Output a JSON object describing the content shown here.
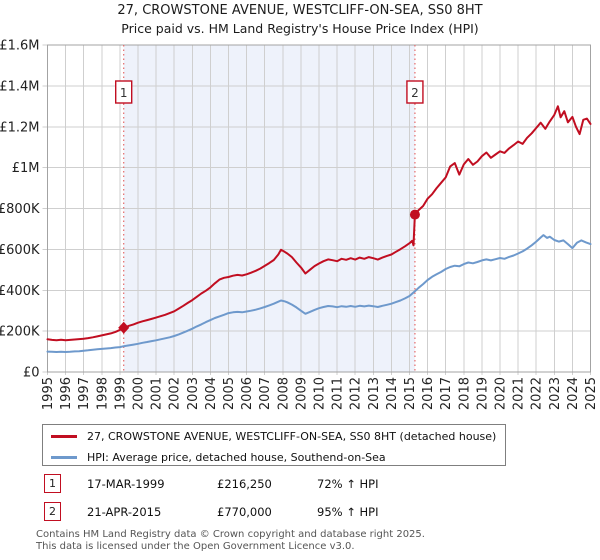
{
  "header": {
    "title": "27, CROWSTONE AVENUE, WESTCLIFF-ON-SEA, SS0 8HT",
    "subtitle": "Price paid vs. HM Land Registry's House Price Index (HPI)"
  },
  "chart_data": {
    "type": "line",
    "x_range": [
      1995,
      2025
    ],
    "y_range": [
      0,
      1600
    ],
    "y_unit": "£K",
    "grid": true,
    "x_ticks": [
      1995,
      1996,
      1997,
      1998,
      1999,
      2000,
      2001,
      2002,
      2003,
      2004,
      2005,
      2006,
      2007,
      2008,
      2009,
      2010,
      2011,
      2012,
      2013,
      2014,
      2015,
      2016,
      2017,
      2018,
      2019,
      2020,
      2021,
      2022,
      2023,
      2024,
      2025
    ],
    "y_ticks": [
      {
        "value": 0,
        "label": "£0"
      },
      {
        "value": 200,
        "label": "£200K"
      },
      {
        "value": 400,
        "label": "£400K"
      },
      {
        "value": 600,
        "label": "£600K"
      },
      {
        "value": 800,
        "label": "£800K"
      },
      {
        "value": 1000,
        "label": "£1M"
      },
      {
        "value": 1200,
        "label": "£1.2M"
      },
      {
        "value": 1400,
        "label": "£1.4M"
      },
      {
        "value": 1600,
        "label": "£1.6M"
      }
    ],
    "shaded_region": [
      1999.21,
      2015.3
    ],
    "colors": {
      "property": "#c10e21",
      "hpi": "#6e99cc",
      "dashed_marker": "#e46a6a",
      "shaded": "#eef2fb",
      "grid": "#cfcfcf",
      "border": "#a3a3a3"
    },
    "series": [
      {
        "name": "property",
        "color": "#c10e21",
        "points": [
          [
            1995.0,
            160
          ],
          [
            1995.25,
            157
          ],
          [
            1995.5,
            155
          ],
          [
            1995.75,
            158
          ],
          [
            1996.0,
            155
          ],
          [
            1996.25,
            157
          ],
          [
            1996.5,
            159
          ],
          [
            1996.75,
            161
          ],
          [
            1997.0,
            163
          ],
          [
            1997.25,
            166
          ],
          [
            1997.5,
            170
          ],
          [
            1997.75,
            174
          ],
          [
            1998.0,
            179
          ],
          [
            1998.25,
            184
          ],
          [
            1998.5,
            189
          ],
          [
            1998.75,
            196
          ],
          [
            1999.0,
            206
          ],
          [
            1999.21,
            216
          ],
          [
            1999.5,
            226
          ],
          [
            1999.75,
            233
          ],
          [
            2000.0,
            241
          ],
          [
            2000.25,
            248
          ],
          [
            2000.5,
            254
          ],
          [
            2000.75,
            260
          ],
          [
            2001.0,
            266
          ],
          [
            2001.25,
            273
          ],
          [
            2001.5,
            280
          ],
          [
            2001.75,
            288
          ],
          [
            2002.0,
            297
          ],
          [
            2002.25,
            310
          ],
          [
            2002.5,
            324
          ],
          [
            2002.75,
            338
          ],
          [
            2003.0,
            352
          ],
          [
            2003.25,
            368
          ],
          [
            2003.5,
            384
          ],
          [
            2003.75,
            398
          ],
          [
            2004.0,
            414
          ],
          [
            2004.25,
            434
          ],
          [
            2004.5,
            452
          ],
          [
            2004.75,
            461
          ],
          [
            2005.0,
            465
          ],
          [
            2005.25,
            471
          ],
          [
            2005.5,
            475
          ],
          [
            2005.75,
            472
          ],
          [
            2006.0,
            478
          ],
          [
            2006.25,
            486
          ],
          [
            2006.5,
            495
          ],
          [
            2006.75,
            506
          ],
          [
            2007.0,
            519
          ],
          [
            2007.25,
            533
          ],
          [
            2007.5,
            548
          ],
          [
            2007.75,
            575
          ],
          [
            2007.9,
            598
          ],
          [
            2008.1,
            588
          ],
          [
            2008.25,
            580
          ],
          [
            2008.5,
            562
          ],
          [
            2008.75,
            536
          ],
          [
            2009.0,
            512
          ],
          [
            2009.25,
            482
          ],
          [
            2009.5,
            500
          ],
          [
            2009.75,
            518
          ],
          [
            2010.0,
            531
          ],
          [
            2010.25,
            542
          ],
          [
            2010.5,
            551
          ],
          [
            2010.75,
            547
          ],
          [
            2011.0,
            542
          ],
          [
            2011.25,
            554
          ],
          [
            2011.5,
            549
          ],
          [
            2011.75,
            557
          ],
          [
            2012.0,
            550
          ],
          [
            2012.25,
            560
          ],
          [
            2012.5,
            554
          ],
          [
            2012.75,
            562
          ],
          [
            2013.0,
            557
          ],
          [
            2013.25,
            550
          ],
          [
            2013.5,
            560
          ],
          [
            2013.75,
            568
          ],
          [
            2014.0,
            575
          ],
          [
            2014.25,
            588
          ],
          [
            2014.5,
            601
          ],
          [
            2014.75,
            615
          ],
          [
            2015.0,
            630
          ],
          [
            2015.15,
            642
          ],
          [
            2015.22,
            620
          ],
          [
            2015.3,
            770
          ],
          [
            2015.5,
            792
          ],
          [
            2015.75,
            812
          ],
          [
            2016.0,
            848
          ],
          [
            2016.25,
            870
          ],
          [
            2016.5,
            900
          ],
          [
            2016.75,
            926
          ],
          [
            2017.0,
            952
          ],
          [
            2017.25,
            1006
          ],
          [
            2017.5,
            1022
          ],
          [
            2017.75,
            966
          ],
          [
            2018.0,
            1016
          ],
          [
            2018.25,
            1042
          ],
          [
            2018.5,
            1014
          ],
          [
            2018.75,
            1030
          ],
          [
            2019.0,
            1056
          ],
          [
            2019.25,
            1074
          ],
          [
            2019.5,
            1048
          ],
          [
            2019.75,
            1064
          ],
          [
            2020.0,
            1080
          ],
          [
            2020.25,
            1072
          ],
          [
            2020.5,
            1094
          ],
          [
            2020.75,
            1110
          ],
          [
            2021.0,
            1128
          ],
          [
            2021.25,
            1116
          ],
          [
            2021.5,
            1146
          ],
          [
            2021.75,
            1168
          ],
          [
            2022.0,
            1194
          ],
          [
            2022.25,
            1220
          ],
          [
            2022.5,
            1190
          ],
          [
            2022.75,
            1226
          ],
          [
            2023.0,
            1258
          ],
          [
            2023.2,
            1300
          ],
          [
            2023.35,
            1246
          ],
          [
            2023.55,
            1276
          ],
          [
            2023.75,
            1222
          ],
          [
            2024.0,
            1248
          ],
          [
            2024.2,
            1200
          ],
          [
            2024.4,
            1164
          ],
          [
            2024.6,
            1234
          ],
          [
            2024.8,
            1240
          ],
          [
            2025.0,
            1214
          ]
        ]
      },
      {
        "name": "hpi",
        "color": "#6e99cc",
        "points": [
          [
            1995.0,
            100
          ],
          [
            1995.25,
            99
          ],
          [
            1995.5,
            98
          ],
          [
            1995.75,
            99
          ],
          [
            1996.0,
            98
          ],
          [
            1996.25,
            99
          ],
          [
            1996.5,
            101
          ],
          [
            1996.75,
            102
          ],
          [
            1997.0,
            104
          ],
          [
            1997.25,
            106
          ],
          [
            1997.5,
            109
          ],
          [
            1997.75,
            111
          ],
          [
            1998.0,
            113
          ],
          [
            1998.25,
            115
          ],
          [
            1998.5,
            117
          ],
          [
            1998.75,
            120
          ],
          [
            1999.0,
            122
          ],
          [
            1999.21,
            126
          ],
          [
            1999.5,
            130
          ],
          [
            1999.75,
            134
          ],
          [
            2000.0,
            138
          ],
          [
            2000.25,
            143
          ],
          [
            2000.5,
            147
          ],
          [
            2000.75,
            151
          ],
          [
            2001.0,
            155
          ],
          [
            2001.25,
            160
          ],
          [
            2001.5,
            165
          ],
          [
            2001.75,
            170
          ],
          [
            2002.0,
            176
          ],
          [
            2002.25,
            184
          ],
          [
            2002.5,
            193
          ],
          [
            2002.75,
            202
          ],
          [
            2003.0,
            212
          ],
          [
            2003.25,
            223
          ],
          [
            2003.5,
            233
          ],
          [
            2003.75,
            244
          ],
          [
            2004.0,
            254
          ],
          [
            2004.25,
            264
          ],
          [
            2004.5,
            272
          ],
          [
            2004.75,
            280
          ],
          [
            2005.0,
            288
          ],
          [
            2005.25,
            292
          ],
          [
            2005.5,
            294
          ],
          [
            2005.75,
            292
          ],
          [
            2006.0,
            296
          ],
          [
            2006.25,
            300
          ],
          [
            2006.5,
            305
          ],
          [
            2006.75,
            311
          ],
          [
            2007.0,
            318
          ],
          [
            2007.25,
            326
          ],
          [
            2007.5,
            334
          ],
          [
            2007.75,
            344
          ],
          [
            2007.9,
            350
          ],
          [
            2008.1,
            346
          ],
          [
            2008.25,
            341
          ],
          [
            2008.5,
            330
          ],
          [
            2008.75,
            316
          ],
          [
            2009.0,
            300
          ],
          [
            2009.25,
            285
          ],
          [
            2009.5,
            294
          ],
          [
            2009.75,
            304
          ],
          [
            2010.0,
            312
          ],
          [
            2010.25,
            318
          ],
          [
            2010.5,
            323
          ],
          [
            2010.75,
            321
          ],
          [
            2011.0,
            317
          ],
          [
            2011.25,
            322
          ],
          [
            2011.5,
            319
          ],
          [
            2011.75,
            323
          ],
          [
            2012.0,
            319
          ],
          [
            2012.25,
            324
          ],
          [
            2012.5,
            321
          ],
          [
            2012.75,
            325
          ],
          [
            2013.0,
            322
          ],
          [
            2013.25,
            318
          ],
          [
            2013.5,
            324
          ],
          [
            2013.75,
            329
          ],
          [
            2014.0,
            334
          ],
          [
            2014.25,
            342
          ],
          [
            2014.5,
            350
          ],
          [
            2014.75,
            360
          ],
          [
            2015.0,
            372
          ],
          [
            2015.3,
            395
          ],
          [
            2015.5,
            412
          ],
          [
            2015.75,
            430
          ],
          [
            2016.0,
            450
          ],
          [
            2016.25,
            466
          ],
          [
            2016.5,
            478
          ],
          [
            2016.75,
            490
          ],
          [
            2017.0,
            504
          ],
          [
            2017.25,
            514
          ],
          [
            2017.5,
            520
          ],
          [
            2017.75,
            517
          ],
          [
            2018.0,
            528
          ],
          [
            2018.25,
            536
          ],
          [
            2018.5,
            532
          ],
          [
            2018.75,
            538
          ],
          [
            2019.0,
            546
          ],
          [
            2019.25,
            551
          ],
          [
            2019.5,
            546
          ],
          [
            2019.75,
            552
          ],
          [
            2020.0,
            558
          ],
          [
            2020.25,
            554
          ],
          [
            2020.5,
            563
          ],
          [
            2020.75,
            570
          ],
          [
            2021.0,
            580
          ],
          [
            2021.25,
            590
          ],
          [
            2021.5,
            604
          ],
          [
            2021.75,
            620
          ],
          [
            2022.0,
            638
          ],
          [
            2022.25,
            658
          ],
          [
            2022.4,
            670
          ],
          [
            2022.6,
            656
          ],
          [
            2022.75,
            662
          ],
          [
            2023.0,
            646
          ],
          [
            2023.25,
            638
          ],
          [
            2023.5,
            644
          ],
          [
            2023.75,
            626
          ],
          [
            2024.0,
            606
          ],
          [
            2024.25,
            632
          ],
          [
            2024.5,
            644
          ],
          [
            2024.75,
            634
          ],
          [
            2025.0,
            626
          ]
        ]
      }
    ],
    "sales": [
      {
        "label": "1",
        "x": 1999.21,
        "y": 216.25,
        "shape": "diamond"
      },
      {
        "label": "2",
        "x": 2015.3,
        "y": 770,
        "shape": "circle"
      }
    ]
  },
  "legend": {
    "items": [
      {
        "label": "27, CROWSTONE AVENUE, WESTCLIFF-ON-SEA, SS0 8HT (detached house)",
        "color": "#c10e21"
      },
      {
        "label": "HPI: Average price, detached house, Southend-on-Sea",
        "color": "#6e99cc"
      }
    ]
  },
  "annotations": [
    {
      "num": "1",
      "date": "17-MAR-1999",
      "price": "£216,250",
      "hpi": "72% ↑ HPI"
    },
    {
      "num": "2",
      "date": "21-APR-2015",
      "price": "£770,000",
      "hpi": "95% ↑ HPI"
    }
  ],
  "footer": {
    "line1": "Contains HM Land Registry data © Crown copyright and database right 2025.",
    "line2": "This data is licensed under the Open Government Licence v3.0."
  }
}
